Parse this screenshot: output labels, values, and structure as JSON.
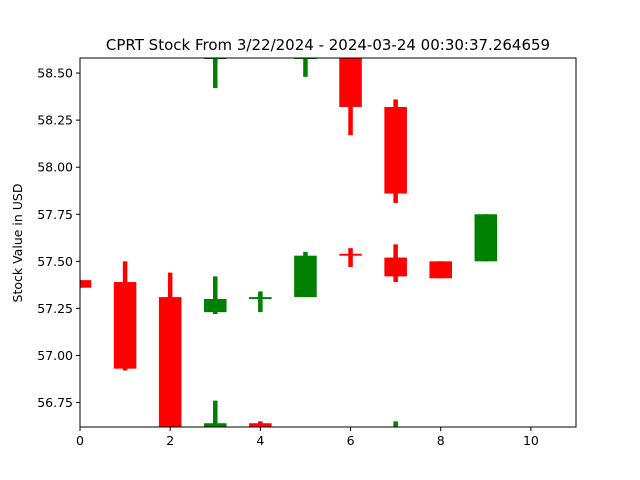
{
  "chart_data": {
    "type": "candlestick",
    "title": "CPRT Stock From 3/22/2024 - 2024-03-24 00:30:37.264659",
    "xlabel": "",
    "ylabel": "Stock Value in USD",
    "xlim": [
      0,
      11
    ],
    "ylim": [
      56.62,
      58.58
    ],
    "x_ticks": [
      0,
      2,
      4,
      6,
      8,
      10
    ],
    "y_ticks": [
      56.75,
      57.0,
      57.25,
      57.5,
      57.75,
      58.0,
      58.25,
      58.5
    ],
    "x_tick_labels": [
      "0",
      "2",
      "4",
      "6",
      "8",
      "10"
    ],
    "y_tick_labels": [
      "56.75",
      "57.00",
      "57.25",
      "57.50",
      "57.75",
      "58.00",
      "58.25",
      "58.50"
    ],
    "grid": false,
    "colors": {
      "up": "#008000",
      "down": "#ff0000",
      "text": "#000000"
    },
    "series": [
      {
        "x": 0,
        "open": 57.4,
        "close": 57.36,
        "high": 57.4,
        "low": 57.36
      },
      {
        "x": 1,
        "open": 57.39,
        "close": 56.93,
        "high": 57.5,
        "low": 56.92
      },
      {
        "x": 2,
        "open": 57.31,
        "close": 56.62,
        "high": 57.44,
        "low": 56.62
      },
      {
        "x": 3,
        "open": 57.23,
        "close": 57.3,
        "high": 57.42,
        "low": 57.22
      },
      {
        "x": 3,
        "open": 56.62,
        "close": 56.64,
        "high": 56.76,
        "low": 56.62
      },
      {
        "x": 3,
        "open": 58.58,
        "close": 58.58,
        "high": 58.58,
        "low": 58.42
      },
      {
        "x": 4,
        "open": 57.3,
        "close": 57.31,
        "high": 57.34,
        "low": 57.23
      },
      {
        "x": 4,
        "open": 56.64,
        "close": 56.62,
        "high": 56.65,
        "low": 56.62
      },
      {
        "x": 5,
        "open": 57.31,
        "close": 57.53,
        "high": 57.55,
        "low": 57.31
      },
      {
        "x": 5,
        "open": 58.58,
        "close": 58.58,
        "high": 58.58,
        "low": 58.48
      },
      {
        "x": 6,
        "open": 57.54,
        "close": 57.53,
        "high": 57.57,
        "low": 57.47
      },
      {
        "x": 6,
        "open": 58.58,
        "close": 58.32,
        "high": 58.58,
        "low": 58.17
      },
      {
        "x": 7,
        "open": 57.52,
        "close": 57.42,
        "high": 57.59,
        "low": 57.39
      },
      {
        "x": 7,
        "open": 58.32,
        "close": 57.86,
        "high": 58.36,
        "low": 57.81
      },
      {
        "x": 7,
        "open": 56.62,
        "close": 56.62,
        "high": 56.65,
        "low": 56.62
      },
      {
        "x": 8,
        "open": 57.5,
        "close": 57.41,
        "high": 57.5,
        "low": 57.41
      },
      {
        "x": 9,
        "open": 57.5,
        "close": 57.75,
        "high": 57.75,
        "low": 57.5
      }
    ]
  }
}
